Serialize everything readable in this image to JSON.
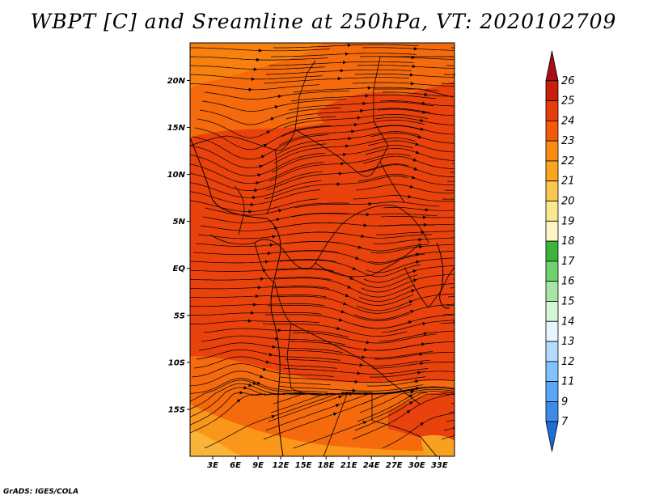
{
  "title": "WBPT [C] and Sreamline at 250hPa, VT: 2020102709",
  "credit": "GrADS: IGES/COLA",
  "map": {
    "lon_range": [
      0,
      35
    ],
    "lat_range": [
      -20,
      24
    ],
    "lon_ticks": [
      {
        "value": 3,
        "label": "3E"
      },
      {
        "value": 6,
        "label": "6E"
      },
      {
        "value": 9,
        "label": "9E"
      },
      {
        "value": 12,
        "label": "12E"
      },
      {
        "value": 15,
        "label": "15E"
      },
      {
        "value": 18,
        "label": "18E"
      },
      {
        "value": 21,
        "label": "21E"
      },
      {
        "value": 24,
        "label": "24E"
      },
      {
        "value": 27,
        "label": "27E"
      },
      {
        "value": 30,
        "label": "30E"
      },
      {
        "value": 33,
        "label": "33E"
      }
    ],
    "lat_ticks": [
      {
        "value": 20,
        "label": "20N"
      },
      {
        "value": 15,
        "label": "15N"
      },
      {
        "value": 10,
        "label": "10N"
      },
      {
        "value": 5,
        "label": "5N"
      },
      {
        "value": 0,
        "label": "EQ"
      },
      {
        "value": -5,
        "label": "5S"
      },
      {
        "value": -10,
        "label": "10S"
      },
      {
        "value": -15,
        "label": "15S"
      }
    ]
  },
  "colorbar": {
    "levels": [
      "26",
      "25",
      "24",
      "23",
      "22",
      "21",
      "20",
      "19",
      "18",
      "17",
      "16",
      "15",
      "14",
      "13",
      "12",
      "11",
      "9",
      "7"
    ],
    "colors": [
      "#a50f15",
      "#c81e0a",
      "#e83c0a",
      "#f55a0a",
      "#fa8c14",
      "#faa51e",
      "#fac850",
      "#fae88c",
      "#fcf5c4",
      "#3cb43c",
      "#6ed26e",
      "#a5e6a5",
      "#d7f5d7",
      "#e6f5ff",
      "#b4dcff",
      "#82c3ff",
      "#5aa5f5",
      "#3c8ce6",
      "#1e6ed7"
    ]
  }
}
